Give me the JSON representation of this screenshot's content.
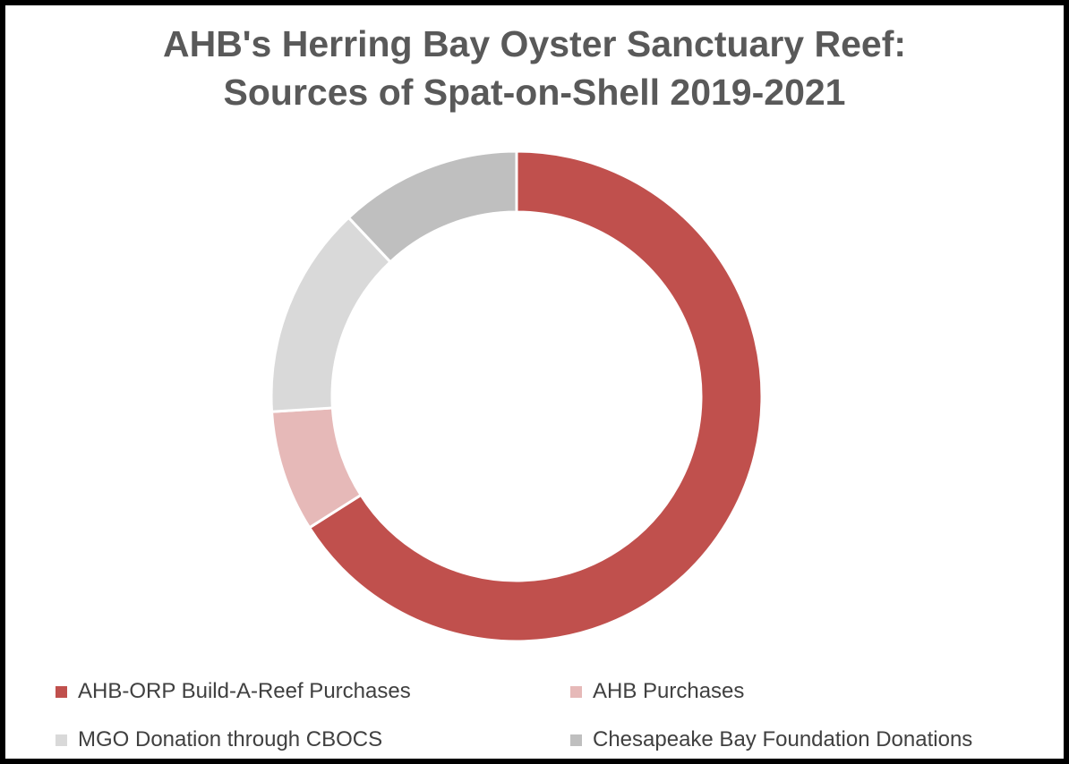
{
  "chart_data": {
    "type": "pie",
    "variant": "donut",
    "title": "AHB's Herring Bay Oyster Sanctuary Reef:",
    "subtitle": "Sources of Spat-on-Shell 2019-2021",
    "start_angle_deg": 0,
    "direction": "clockwise",
    "legend_position": "bottom",
    "categories": [
      "AHB-ORP Build-A-Reef Purchases",
      "AHB Purchases",
      "MGO Donation through CBOCS",
      "Chesapeake Bay Foundation Donations"
    ],
    "values": [
      66,
      8,
      14,
      12
    ],
    "colors": [
      "#c0504d",
      "#e6b9b8",
      "#d9d9d9",
      "#bfbfbf"
    ]
  }
}
